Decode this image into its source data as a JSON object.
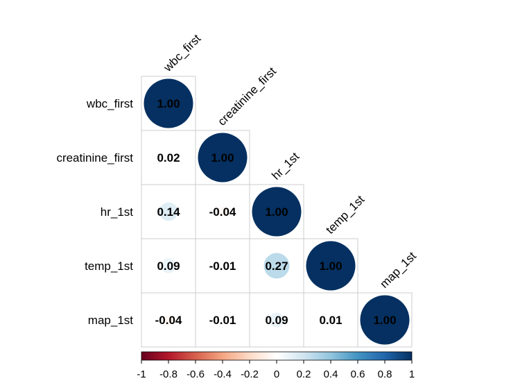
{
  "chart_data": {
    "type": "heatmap",
    "variables": [
      "wbc_first",
      "creatinine_first",
      "hr_1st",
      "temp_1st",
      "map_1st"
    ],
    "matrix": [
      [
        1.0,
        null,
        null,
        null,
        null
      ],
      [
        0.02,
        1.0,
        null,
        null,
        null
      ],
      [
        0.14,
        -0.04,
        1.0,
        null,
        null
      ],
      [
        0.09,
        -0.01,
        0.27,
        1.0,
        null
      ],
      [
        -0.04,
        -0.01,
        0.09,
        0.01,
        1.0
      ]
    ],
    "value_labels": [
      [
        "1.00",
        "",
        "",
        "",
        ""
      ],
      [
        "0.02",
        "1.00",
        "",
        "",
        ""
      ],
      [
        "0.14",
        "-0.04",
        "1.00",
        "",
        ""
      ],
      [
        "0.09",
        "-0.01",
        "0.27",
        "1.00",
        ""
      ],
      [
        "-0.04",
        "-0.01",
        "0.09",
        "0.01",
        "1.00"
      ]
    ],
    "colorbar": {
      "range": [
        -1,
        1
      ],
      "tick_labels": [
        "-1",
        "-0.8",
        "-0.6",
        "-0.4",
        "-0.2",
        "0",
        "0.2",
        "0.4",
        "0.6",
        "0.8",
        "1"
      ],
      "ticks": [
        -1,
        -0.8,
        -0.6,
        -0.4,
        -0.2,
        0,
        0.2,
        0.4,
        0.6,
        0.8,
        1
      ],
      "colors": [
        "#67001F",
        "#B2182B",
        "#D6604D",
        "#F4A582",
        "#FDDBC7",
        "#FFFFFF",
        "#D1E5F0",
        "#92C5DE",
        "#4393C3",
        "#2166AC",
        "#053061"
      ]
    },
    "grid_color": "#cccccc",
    "label_color": "#000000"
  }
}
